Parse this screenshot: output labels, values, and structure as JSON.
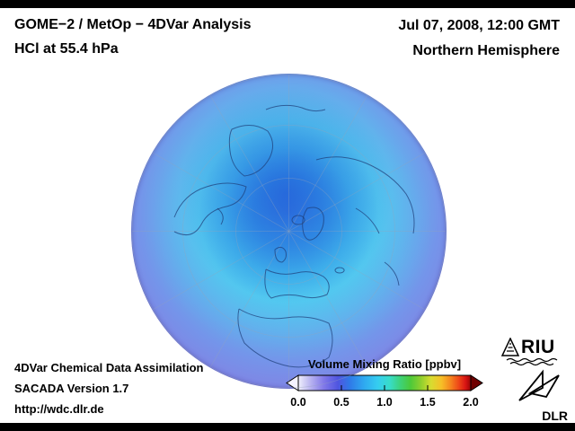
{
  "header": {
    "title_line1": "GOME−2 / MetOp − 4DVar Analysis",
    "title_line2": "HCl at 55.4 hPa",
    "datetime": "Jul 07, 2008, 12:00 GMT",
    "region": "Northern Hemisphere"
  },
  "footer": {
    "credit_line1": "4DVar Chemical Data Assimilation",
    "credit_line2": "SACADA Version 1.7",
    "credit_line3": "http://wdc.dlr.de"
  },
  "colorbar": {
    "title": "Volume Mixing Ratio [ppbv]",
    "min": 0.0,
    "max": 2.0,
    "ticks": [
      "0.0",
      "0.5",
      "1.0",
      "1.5",
      "2.0"
    ],
    "left_arrow_color": "#f4f2ff",
    "right_arrow_color": "#6f0000",
    "stops": [
      {
        "o": "0%",
        "c": "#efeffc"
      },
      {
        "o": "7%",
        "c": "#b9b4f0"
      },
      {
        "o": "15%",
        "c": "#7f77e8"
      },
      {
        "o": "23%",
        "c": "#4f55e0"
      },
      {
        "o": "30%",
        "c": "#2f7ae8"
      },
      {
        "o": "38%",
        "c": "#2fa8f0"
      },
      {
        "o": "46%",
        "c": "#35cdf0"
      },
      {
        "o": "53%",
        "c": "#38dcc8"
      },
      {
        "o": "59%",
        "c": "#3dd27a"
      },
      {
        "o": "65%",
        "c": "#4cc93a"
      },
      {
        "o": "71%",
        "c": "#8ecf2e"
      },
      {
        "o": "77%",
        "c": "#d8dc30"
      },
      {
        "o": "83%",
        "c": "#f6bf27"
      },
      {
        "o": "88%",
        "c": "#f5881f"
      },
      {
        "o": "93%",
        "c": "#ee4718"
      },
      {
        "o": "97%",
        "c": "#d81414"
      },
      {
        "o": "100%",
        "c": "#9a0404"
      }
    ]
  },
  "globe": {
    "gradient": [
      {
        "o": "0%",
        "c": "#2b59d8"
      },
      {
        "o": "14%",
        "c": "#2b7fe0"
      },
      {
        "o": "27%",
        "c": "#3fb2ea"
      },
      {
        "o": "38%",
        "c": "#55c6ee"
      },
      {
        "o": "50%",
        "c": "#63b0ec"
      },
      {
        "o": "63%",
        "c": "#7495ea"
      },
      {
        "o": "76%",
        "c": "#8184e4"
      },
      {
        "o": "88%",
        "c": "#9582de"
      },
      {
        "o": "100%",
        "c": "#a98dd6"
      }
    ]
  },
  "logos": {
    "riu_label": "RIU",
    "dlr_label": "DLR"
  }
}
